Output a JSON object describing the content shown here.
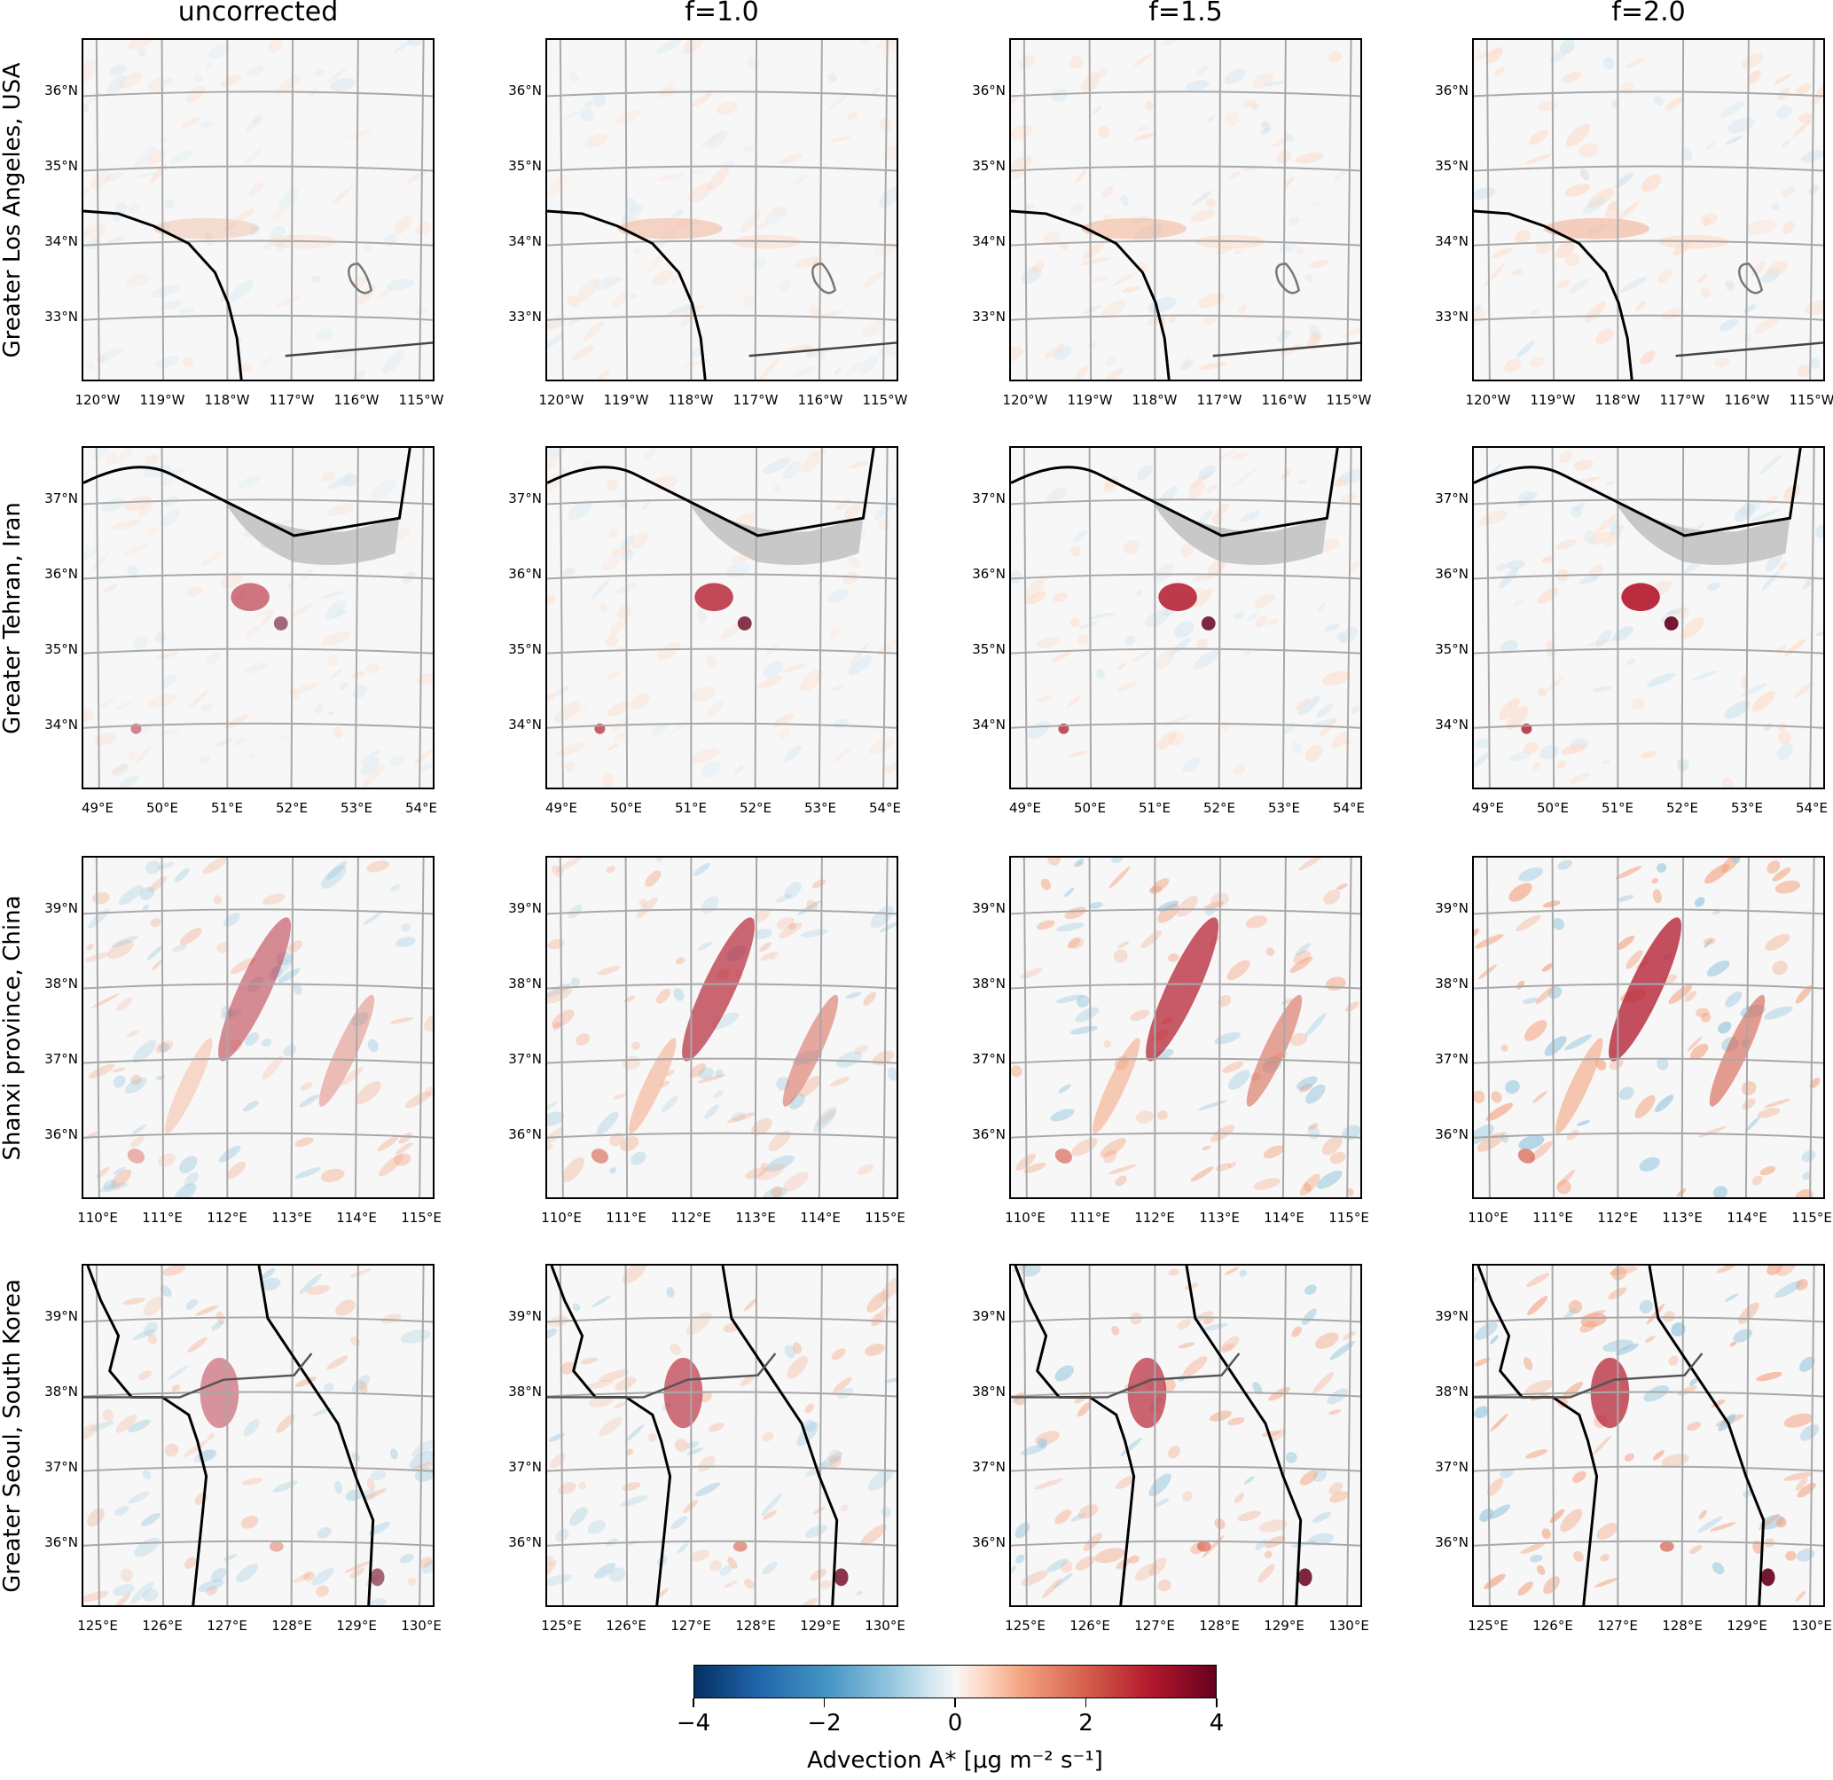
{
  "columns": [
    "uncorrected",
    "f=1.0",
    "f=1.5",
    "f=2.0"
  ],
  "rows": [
    {
      "name": "Greater Los Angeles, USA",
      "lat_ticks": [
        "36°N",
        "35°N",
        "34°N",
        "33°N"
      ],
      "lon_ticks": [
        "120°W",
        "119°W",
        "118°W",
        "117°W",
        "116°W",
        "115°W"
      ]
    },
    {
      "name": "Greater Tehran, Iran",
      "lat_ticks": [
        "37°N",
        "36°N",
        "35°N",
        "34°N"
      ],
      "lon_ticks": [
        "49°E",
        "50°E",
        "51°E",
        "52°E",
        "53°E",
        "54°E"
      ]
    },
    {
      "name": "Shanxi province, China",
      "lat_ticks": [
        "39°N",
        "38°N",
        "37°N",
        "36°N"
      ],
      "lon_ticks": [
        "110°E",
        "111°E",
        "112°E",
        "113°E",
        "114°E",
        "115°E"
      ]
    },
    {
      "name": "Greater Seoul, South Korea",
      "lat_ticks": [
        "39°N",
        "38°N",
        "37°N",
        "36°N"
      ],
      "lon_ticks": [
        "125°E",
        "126°E",
        "127°E",
        "128°E",
        "129°E",
        "130°E"
      ]
    }
  ],
  "colorbar": {
    "ticks": [
      "−4",
      "−2",
      "0",
      "2",
      "4"
    ],
    "range": [
      -4,
      4
    ],
    "colormap": "RdBu_r",
    "label": "Advection A* [μg m⁻² s⁻¹]"
  }
}
